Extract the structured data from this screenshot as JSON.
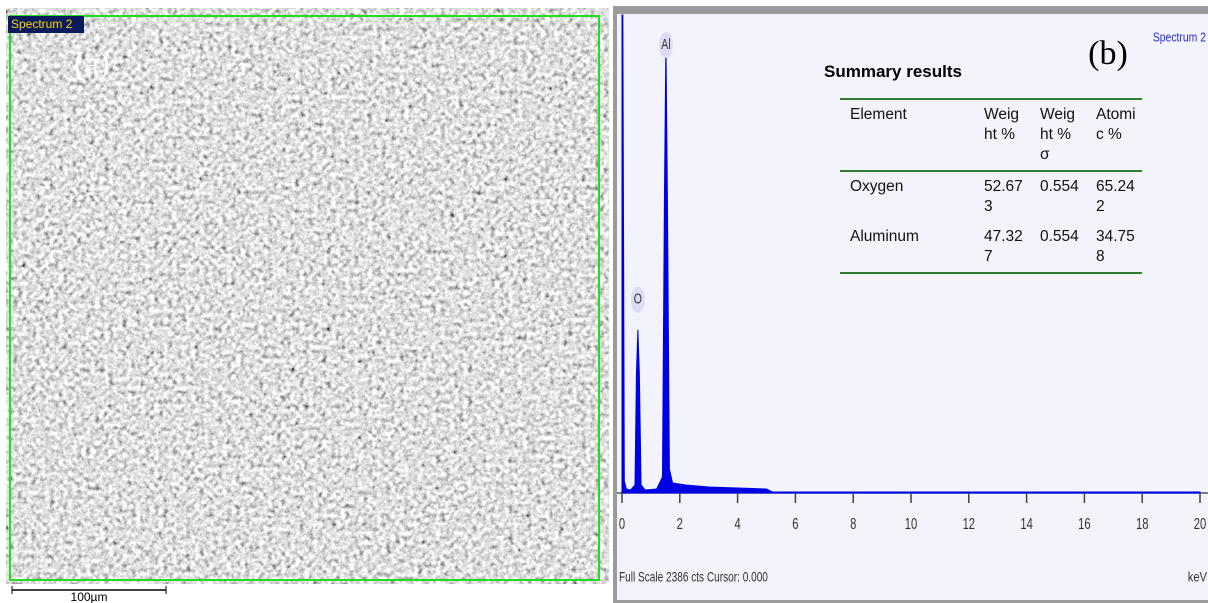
{
  "sem_panel": {
    "tag": "Spectrum 2",
    "label": "(a)",
    "scale_bar": "100µm"
  },
  "chart_data": {
    "type": "area",
    "panel_label": "(b)",
    "spectrum_label": "Spectrum 2",
    "x_label": "keV",
    "footer": "Full Scale 2386 cts Cursor: 0.000",
    "color": "#0000e6",
    "x": [
      0,
      0.03,
      0.08,
      0.15,
      0.3,
      0.45,
      0.5,
      0.55,
      0.6,
      0.66,
      0.8,
      1.2,
      1.4,
      1.47,
      1.52,
      1.57,
      1.64,
      1.75,
      2.2,
      3,
      4,
      5,
      5.2,
      20
    ],
    "values": [
      2386,
      2386,
      60,
      20,
      15,
      40,
      600,
      815,
      600,
      40,
      15,
      20,
      80,
      1500,
      2260,
      1500,
      120,
      50,
      40,
      30,
      25,
      20,
      5,
      5
    ],
    "xlim": [
      0,
      20
    ],
    "ylim": [
      0,
      2386
    ],
    "xticks": [
      0,
      2,
      4,
      6,
      8,
      10,
      12,
      14,
      16,
      18,
      20
    ],
    "peak_labels": [
      {
        "label": "O",
        "x": 0.55
      },
      {
        "label": "Al",
        "x": 1.52
      }
    ]
  },
  "summary_table": {
    "title": "Summary results",
    "header": [
      "Element",
      "Weight %",
      "Weight % σ",
      "Atomic %"
    ],
    "rows": [
      [
        "Oxygen",
        "52.673",
        "0.554",
        "65.242"
      ],
      [
        "Aluminum",
        "47.327",
        "0.554",
        "34.758"
      ]
    ]
  }
}
